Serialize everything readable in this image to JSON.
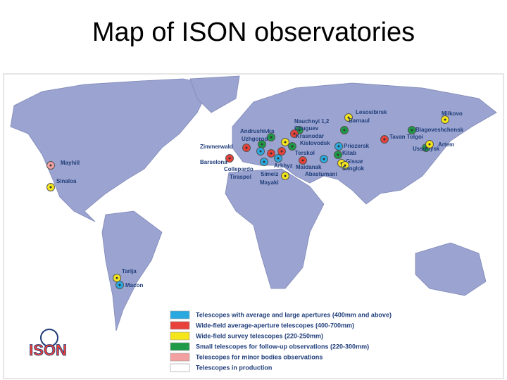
{
  "title": "Map of ISON observatories",
  "logo": "ISON",
  "observatories": [
    "Lesosibirsk",
    "Milkovo",
    "Nauchnyi 1,2",
    "Chuguev",
    "Andrushivka",
    "Uzhgorod",
    "Zimmerwald",
    "Krasnodar",
    "Kislovodsk",
    "Barnaul",
    "Blagoveshchensk",
    "Tavan Tolgoi",
    "Ussuriysk",
    "Artem",
    "Priozersk",
    "Terskol",
    "Kitab",
    "Barselona",
    "Collepardo",
    "Tiraspol",
    "Arkhyz",
    "Simeiz",
    "Mayaki",
    "Maidanak",
    "Gissar",
    "Sanglok",
    "Abastumani",
    "Mayhill",
    "Sinaloa",
    "Tarija",
    "Macon"
  ],
  "legend": [
    {
      "label": "Telescopes with average and large apertures (400mm and above)",
      "color": "#29a9e0"
    },
    {
      "label": "Wide-field average-aperture telescopes (400-700mm)",
      "color": "#e8403a"
    },
    {
      "label": "Wide-field survey telescopes (220-250mm)",
      "color": "#f5e61c"
    },
    {
      "label": "Small telescopes for follow-up observations (220-300mm)",
      "color": "#1e9a48"
    },
    {
      "label": "Telescopes for minor bodies observations",
      "color": "#f2a1a0"
    },
    {
      "label": "Telescopes in production",
      "color": "#ffffff"
    }
  ]
}
